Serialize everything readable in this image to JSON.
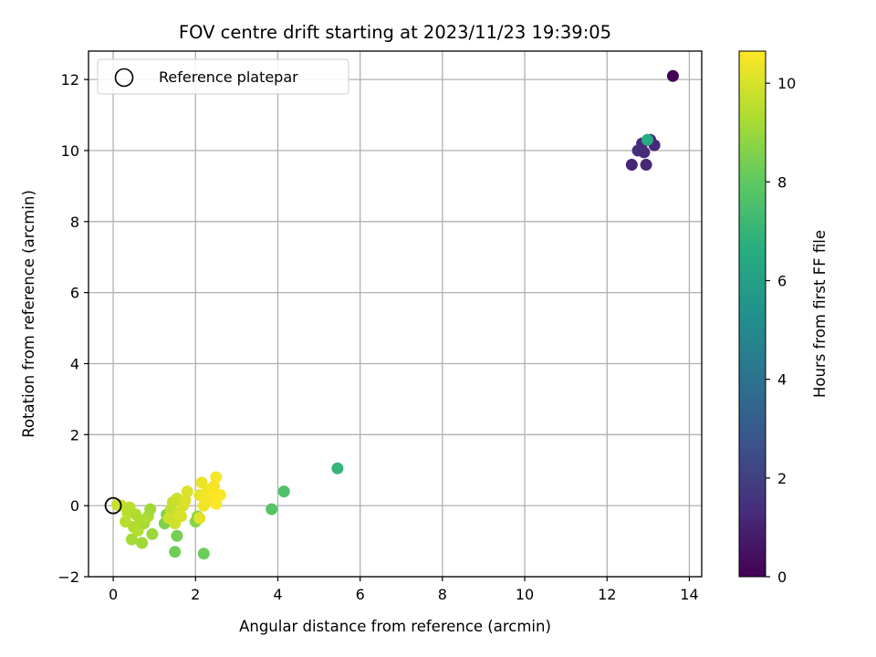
{
  "chart_data": {
    "type": "scatter",
    "title": "FOV centre drift starting at 2023/11/23 19:39:05",
    "xlabel": "Angular distance from reference (arcmin)",
    "ylabel": "Rotation from reference (arcmin)",
    "xlim": [
      -0.6,
      14.3
    ],
    "ylim": [
      -2.0,
      12.8
    ],
    "xticks": [
      0,
      2,
      4,
      6,
      8,
      10,
      12,
      14
    ],
    "yticks": [
      -2,
      0,
      2,
      4,
      6,
      8,
      10,
      12
    ],
    "grid": true,
    "legend": {
      "position": "top-left",
      "entries": [
        "Reference platepar"
      ]
    },
    "reference_point": {
      "x": 0,
      "y": 0
    },
    "colorbar": {
      "label": "Hours from first FF file",
      "colormap": "viridis",
      "range": [
        0,
        10.65
      ],
      "ticks": [
        0,
        2,
        4,
        6,
        8,
        10
      ]
    },
    "points": [
      {
        "x": 13.6,
        "y": 12.1,
        "c": 0.0
      },
      {
        "x": 12.85,
        "y": 10.2,
        "c": 1.2
      },
      {
        "x": 13.05,
        "y": 10.3,
        "c": 1.3
      },
      {
        "x": 12.75,
        "y": 10.0,
        "c": 1.4
      },
      {
        "x": 12.9,
        "y": 9.95,
        "c": 1.3
      },
      {
        "x": 13.15,
        "y": 10.15,
        "c": 1.25
      },
      {
        "x": 12.6,
        "y": 9.6,
        "c": 1.1
      },
      {
        "x": 12.95,
        "y": 9.6,
        "c": 1.15
      },
      {
        "x": 12.98,
        "y": 10.3,
        "c": 6.5
      },
      {
        "x": 5.45,
        "y": 1.05,
        "c": 7.0
      },
      {
        "x": 4.15,
        "y": 0.4,
        "c": 7.6
      },
      {
        "x": 3.85,
        "y": -0.1,
        "c": 7.8
      },
      {
        "x": 2.2,
        "y": -1.35,
        "c": 8.2
      },
      {
        "x": 1.5,
        "y": -1.3,
        "c": 8.3
      },
      {
        "x": 1.55,
        "y": -0.85,
        "c": 8.4
      },
      {
        "x": 1.25,
        "y": -0.5,
        "c": 8.5
      },
      {
        "x": 1.3,
        "y": -0.25,
        "c": 8.6
      },
      {
        "x": 2.0,
        "y": -0.45,
        "c": 8.7
      },
      {
        "x": 2.05,
        "y": -0.3,
        "c": 8.8
      },
      {
        "x": 0.95,
        "y": -0.8,
        "c": 9.0
      },
      {
        "x": 0.7,
        "y": -1.05,
        "c": 9.1
      },
      {
        "x": 0.45,
        "y": -0.95,
        "c": 9.2
      },
      {
        "x": 0.5,
        "y": -0.6,
        "c": 9.3
      },
      {
        "x": 0.6,
        "y": -0.7,
        "c": 9.4
      },
      {
        "x": 0.75,
        "y": -0.5,
        "c": 9.2
      },
      {
        "x": 0.85,
        "y": -0.3,
        "c": 9.3
      },
      {
        "x": 0.9,
        "y": -0.1,
        "c": 9.1
      },
      {
        "x": 0.3,
        "y": -0.45,
        "c": 9.5
      },
      {
        "x": 0.35,
        "y": -0.2,
        "c": 9.6
      },
      {
        "x": 0.2,
        "y": 0.0,
        "c": 9.7
      },
      {
        "x": 0.4,
        "y": -0.05,
        "c": 9.5
      },
      {
        "x": 0.55,
        "y": -0.25,
        "c": 9.4
      },
      {
        "x": 0.65,
        "y": -0.4,
        "c": 9.35
      },
      {
        "x": 0.1,
        "y": 0.02,
        "c": 9.8
      },
      {
        "x": 1.4,
        "y": -0.1,
        "c": 9.6
      },
      {
        "x": 1.45,
        "y": 0.1,
        "c": 9.7
      },
      {
        "x": 1.55,
        "y": 0.2,
        "c": 9.8
      },
      {
        "x": 1.6,
        "y": -0.2,
        "c": 9.9
      },
      {
        "x": 1.5,
        "y": -0.5,
        "c": 9.9
      },
      {
        "x": 1.7,
        "y": 0.0,
        "c": 10.0
      },
      {
        "x": 1.75,
        "y": 0.15,
        "c": 10.1
      },
      {
        "x": 1.65,
        "y": -0.3,
        "c": 10.0
      },
      {
        "x": 1.8,
        "y": 0.4,
        "c": 10.1
      },
      {
        "x": 1.35,
        "y": -0.35,
        "c": 9.85
      },
      {
        "x": 2.1,
        "y": -0.35,
        "c": 10.2
      },
      {
        "x": 2.1,
        "y": 0.3,
        "c": 10.3
      },
      {
        "x": 2.15,
        "y": 0.65,
        "c": 10.35
      },
      {
        "x": 2.2,
        "y": 0.0,
        "c": 10.4
      },
      {
        "x": 2.3,
        "y": 0.45,
        "c": 10.4
      },
      {
        "x": 2.35,
        "y": 0.15,
        "c": 10.45
      },
      {
        "x": 2.45,
        "y": 0.55,
        "c": 10.5
      },
      {
        "x": 2.5,
        "y": 0.8,
        "c": 10.55
      },
      {
        "x": 2.5,
        "y": 0.05,
        "c": 10.6
      },
      {
        "x": 2.6,
        "y": 0.3,
        "c": 10.6
      },
      {
        "x": 2.4,
        "y": 0.25,
        "c": 10.65
      },
      {
        "x": 2.25,
        "y": 0.2,
        "c": 10.5
      }
    ]
  }
}
